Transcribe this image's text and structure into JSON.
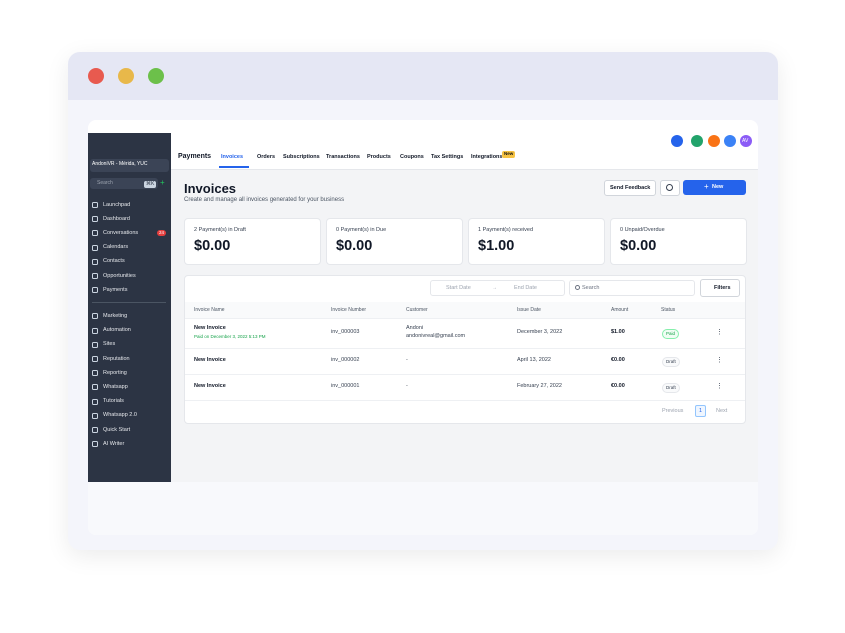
{
  "sidebar": {
    "account": "AndoniVR - Mérida, YUC",
    "search": "Search",
    "shortcut": "⌘K",
    "groups": [
      [
        "Launchpad",
        "Dashboard",
        "Conversations",
        "Calendars",
        "Contacts",
        "Opportunities",
        "Payments"
      ],
      [
        "Marketing",
        "Automation",
        "Sites",
        "Reputation",
        "Reporting",
        "Whatsapp",
        "Tutorials",
        "Whatsapp 2.0",
        "Quick Start",
        "AI Writer"
      ]
    ],
    "conversations_badge": "24"
  },
  "nav": {
    "title": "Payments",
    "tabs": [
      "Invoices",
      "Orders",
      "Subscriptions",
      "Transactions",
      "Products",
      "Coupons",
      "Tax Settings",
      "Integrations"
    ],
    "new_badge": "New",
    "avatar": "AV"
  },
  "header": {
    "title": "Invoices",
    "subtitle": "Create and manage all invoices generated for your business",
    "feedback": "Send Feedback",
    "new_button": "New"
  },
  "summary": [
    {
      "label": "2 Payment(s) in Draft",
      "value": "$0.00"
    },
    {
      "label": "0 Payment(s) in Due",
      "value": "$0.00"
    },
    {
      "label": "1 Payment(s) received",
      "value": "$1.00"
    },
    {
      "label": "0 Unpaid/Overdue",
      "value": "$0.00"
    }
  ],
  "filters": {
    "start_date": "Start Date",
    "end_date": "End Date",
    "search": "Search",
    "button": "Filters"
  },
  "table": {
    "columns": [
      "Invoice Name",
      "Invoice Number",
      "Customer",
      "Issue Date",
      "Amount",
      "Status"
    ],
    "rows": [
      {
        "name": "New Invoice",
        "note": "Paid on December 3, 2022 5:13 PM",
        "number": "inv_000003",
        "customer": "Andoni",
        "email": "andonivreal@gmail.com",
        "date": "December 3, 2022",
        "amount": "$1.00",
        "status": "Paid"
      },
      {
        "name": "New Invoice",
        "number": "inv_000002",
        "customer": "-",
        "date": "April 13, 2022",
        "amount": "€0.00",
        "status": "Draft"
      },
      {
        "name": "New Invoice",
        "number": "inv_000001",
        "customer": "-",
        "date": "February 27, 2022",
        "amount": "€0.00",
        "status": "Draft"
      }
    ]
  },
  "pagination": {
    "previous": "Previous",
    "page": "1",
    "next": "Next"
  }
}
